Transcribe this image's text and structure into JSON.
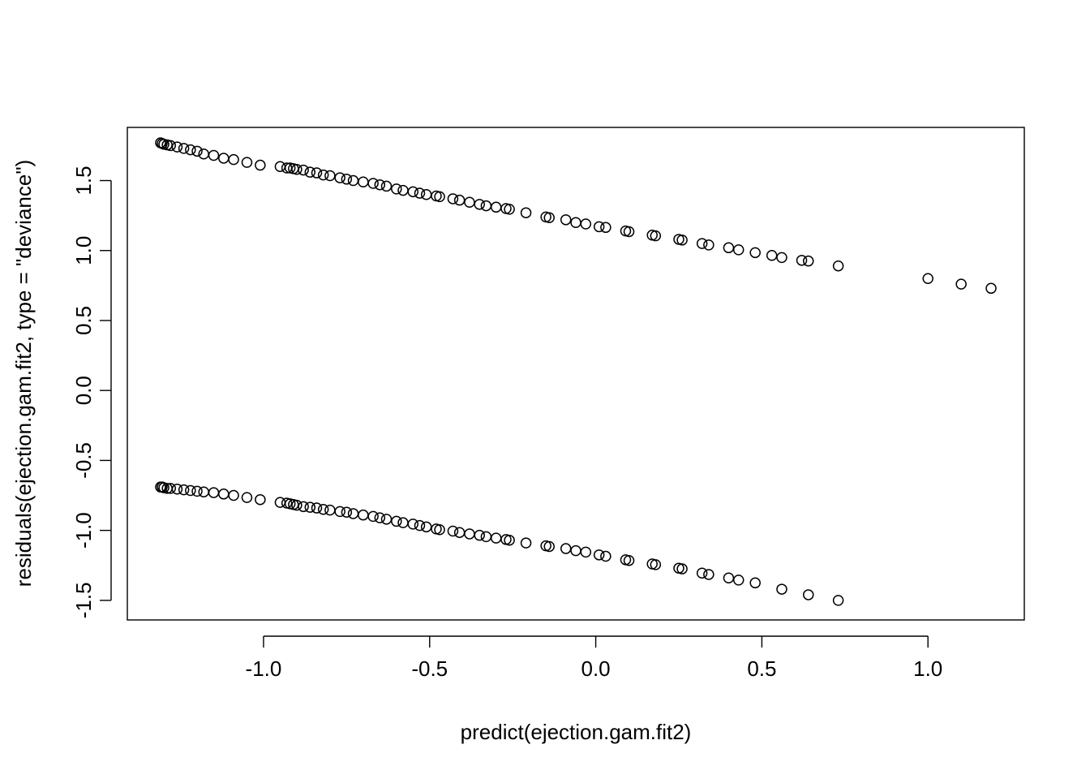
{
  "chart_data": {
    "type": "scatter",
    "title": "",
    "xlabel": "predict(ejection.gam.fit2)",
    "ylabel": "residuals(ejection.gam.fit2, type = \"deviance\")",
    "xlim": [
      -1.41,
      1.29
    ],
    "ylim": [
      -1.64,
      1.88
    ],
    "x_ticks": [
      -1.0,
      -0.5,
      0.0,
      0.5,
      1.0
    ],
    "x_tick_labels": [
      "-1.0",
      "-0.5",
      "0.0",
      "0.5",
      "1.0"
    ],
    "y_ticks": [
      -1.5,
      -1.0,
      -0.5,
      0.0,
      0.5,
      1.0,
      1.5
    ],
    "y_tick_labels": [
      "-1.5",
      "-1.0",
      "-0.5",
      "0.0",
      "0.5",
      "1.0",
      "1.5"
    ],
    "grid": false,
    "marker": "open-circle",
    "series": [
      {
        "points": [
          [
            -1.31,
            1.77
          ],
          [
            -1.305,
            1.765
          ],
          [
            -1.3,
            1.76
          ],
          [
            -1.29,
            1.755
          ],
          [
            -1.28,
            1.75
          ],
          [
            -1.26,
            1.74
          ],
          [
            -1.24,
            1.73
          ],
          [
            -1.22,
            1.72
          ],
          [
            -1.2,
            1.71
          ],
          [
            -1.18,
            1.69
          ],
          [
            -1.15,
            1.68
          ],
          [
            -1.12,
            1.66
          ],
          [
            -1.09,
            1.65
          ],
          [
            -1.05,
            1.63
          ],
          [
            -1.01,
            1.61
          ],
          [
            -0.95,
            1.6
          ],
          [
            -0.93,
            1.59
          ],
          [
            -0.92,
            1.59
          ],
          [
            -0.91,
            1.585
          ],
          [
            -0.9,
            1.58
          ],
          [
            -0.88,
            1.575
          ],
          [
            -0.86,
            1.56
          ],
          [
            -0.84,
            1.555
          ],
          [
            -0.82,
            1.54
          ],
          [
            -0.8,
            1.535
          ],
          [
            -0.77,
            1.52
          ],
          [
            -0.75,
            1.51
          ],
          [
            -0.73,
            1.5
          ],
          [
            -0.7,
            1.49
          ],
          [
            -0.67,
            1.48
          ],
          [
            -0.65,
            1.47
          ],
          [
            -0.63,
            1.46
          ],
          [
            -0.6,
            1.44
          ],
          [
            -0.58,
            1.43
          ],
          [
            -0.55,
            1.42
          ],
          [
            -0.53,
            1.41
          ],
          [
            -0.51,
            1.4
          ],
          [
            -0.48,
            1.39
          ],
          [
            -0.47,
            1.385
          ],
          [
            -0.43,
            1.37
          ],
          [
            -0.41,
            1.36
          ],
          [
            -0.38,
            1.345
          ],
          [
            -0.35,
            1.33
          ],
          [
            -0.33,
            1.32
          ],
          [
            -0.3,
            1.31
          ],
          [
            -0.27,
            1.3
          ],
          [
            -0.26,
            1.295
          ],
          [
            -0.21,
            1.27
          ],
          [
            -0.15,
            1.24
          ],
          [
            -0.14,
            1.235
          ],
          [
            -0.09,
            1.22
          ],
          [
            -0.06,
            1.2
          ],
          [
            -0.03,
            1.19
          ],
          [
            0.01,
            1.17
          ],
          [
            0.03,
            1.165
          ],
          [
            0.09,
            1.14
          ],
          [
            0.1,
            1.135
          ],
          [
            0.17,
            1.11
          ],
          [
            0.18,
            1.105
          ],
          [
            0.25,
            1.08
          ],
          [
            0.26,
            1.075
          ],
          [
            0.32,
            1.05
          ],
          [
            0.34,
            1.04
          ],
          [
            0.4,
            1.02
          ],
          [
            0.43,
            1.005
          ],
          [
            0.48,
            0.985
          ],
          [
            0.53,
            0.965
          ],
          [
            0.56,
            0.95
          ],
          [
            0.62,
            0.93
          ],
          [
            0.64,
            0.925
          ],
          [
            0.73,
            0.89
          ],
          [
            1.0,
            0.8
          ],
          [
            1.1,
            0.76
          ],
          [
            1.19,
            0.73
          ]
        ]
      },
      {
        "points": [
          [
            -1.31,
            -0.69
          ],
          [
            -1.305,
            -0.69
          ],
          [
            -1.3,
            -0.695
          ],
          [
            -1.29,
            -0.7
          ],
          [
            -1.28,
            -0.7
          ],
          [
            -1.26,
            -0.705
          ],
          [
            -1.24,
            -0.71
          ],
          [
            -1.22,
            -0.715
          ],
          [
            -1.2,
            -0.72
          ],
          [
            -1.18,
            -0.725
          ],
          [
            -1.15,
            -0.73
          ],
          [
            -1.12,
            -0.74
          ],
          [
            -1.09,
            -0.75
          ],
          [
            -1.05,
            -0.765
          ],
          [
            -1.01,
            -0.78
          ],
          [
            -0.95,
            -0.8
          ],
          [
            -0.93,
            -0.805
          ],
          [
            -0.92,
            -0.81
          ],
          [
            -0.91,
            -0.815
          ],
          [
            -0.9,
            -0.82
          ],
          [
            -0.88,
            -0.83
          ],
          [
            -0.86,
            -0.835
          ],
          [
            -0.84,
            -0.84
          ],
          [
            -0.82,
            -0.85
          ],
          [
            -0.8,
            -0.855
          ],
          [
            -0.77,
            -0.865
          ],
          [
            -0.75,
            -0.87
          ],
          [
            -0.73,
            -0.88
          ],
          [
            -0.7,
            -0.89
          ],
          [
            -0.67,
            -0.9
          ],
          [
            -0.65,
            -0.91
          ],
          [
            -0.63,
            -0.92
          ],
          [
            -0.6,
            -0.935
          ],
          [
            -0.58,
            -0.945
          ],
          [
            -0.55,
            -0.955
          ],
          [
            -0.53,
            -0.965
          ],
          [
            -0.51,
            -0.975
          ],
          [
            -0.48,
            -0.99
          ],
          [
            -0.47,
            -0.995
          ],
          [
            -0.43,
            -1.005
          ],
          [
            -0.41,
            -1.015
          ],
          [
            -0.38,
            -1.025
          ],
          [
            -0.35,
            -1.035
          ],
          [
            -0.33,
            -1.045
          ],
          [
            -0.3,
            -1.055
          ],
          [
            -0.27,
            -1.065
          ],
          [
            -0.26,
            -1.07
          ],
          [
            -0.21,
            -1.09
          ],
          [
            -0.15,
            -1.11
          ],
          [
            -0.14,
            -1.115
          ],
          [
            -0.09,
            -1.13
          ],
          [
            -0.06,
            -1.145
          ],
          [
            -0.03,
            -1.155
          ],
          [
            0.01,
            -1.175
          ],
          [
            0.03,
            -1.185
          ],
          [
            0.09,
            -1.21
          ],
          [
            0.1,
            -1.215
          ],
          [
            0.17,
            -1.24
          ],
          [
            0.18,
            -1.245
          ],
          [
            0.25,
            -1.27
          ],
          [
            0.26,
            -1.275
          ],
          [
            0.32,
            -1.305
          ],
          [
            0.34,
            -1.315
          ],
          [
            0.4,
            -1.34
          ],
          [
            0.43,
            -1.355
          ],
          [
            0.48,
            -1.375
          ],
          [
            0.56,
            -1.42
          ],
          [
            0.64,
            -1.46
          ],
          [
            0.73,
            -1.5
          ]
        ]
      }
    ]
  }
}
